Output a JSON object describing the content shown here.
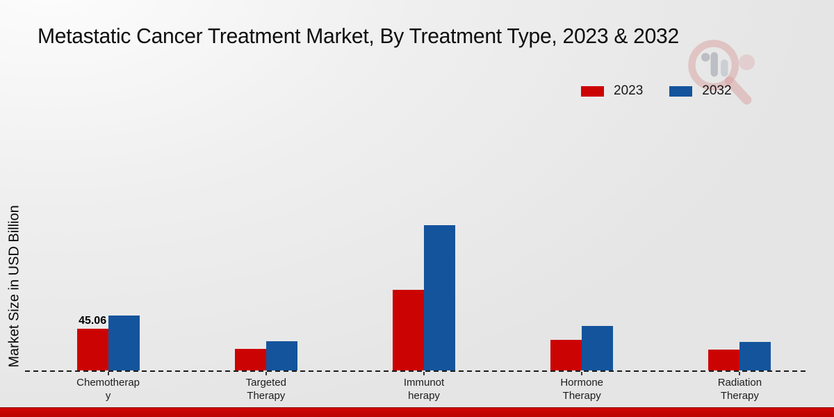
{
  "title": "Metastatic Cancer Treatment Market, By Treatment Type, 2023 & 2032",
  "ylabel": "Market Size in USD Billion",
  "legend": [
    {
      "label": "2023",
      "color": "#cc0303"
    },
    {
      "label": "2032",
      "color": "#14549c"
    }
  ],
  "colors": {
    "series_2023": "#cc0303",
    "series_2032": "#14549c",
    "footer_strip": "#c40404",
    "background": "#ededed"
  },
  "watermark_icon": "magnifier-bar-chart-logo",
  "chart_data": {
    "type": "bar",
    "title": "Metastatic Cancer Treatment Market, By Treatment Type, 2023 & 2032",
    "xlabel": "",
    "ylabel": "Market Size in USD Billion",
    "categories": [
      "Chemotherapy",
      "Targeted Therapy",
      "Immunotherapy",
      "Hormone Therapy",
      "Radiation Therapy"
    ],
    "category_label_lines": [
      [
        "Chemotherap",
        "y"
      ],
      [
        "Targeted",
        "Therapy"
      ],
      [
        "Immunot",
        "herapy"
      ],
      [
        "Hormone",
        "Therapy"
      ],
      [
        "Radiation",
        "Therapy"
      ]
    ],
    "series": [
      {
        "name": "2023",
        "color": "#cc0303",
        "values": [
          45.06,
          23.0,
          87.1,
          33.0,
          22.5
        ],
        "data_labels": [
          "45.06",
          null,
          null,
          null,
          null
        ]
      },
      {
        "name": "2032",
        "color": "#14549c",
        "values": [
          59.3,
          31.5,
          156.7,
          48.1,
          30.5
        ],
        "data_labels": [
          null,
          null,
          null,
          null,
          null
        ]
      }
    ],
    "ylim": [
      0,
      170
    ],
    "grid": false,
    "y_axis_ticks_visible": false,
    "baseline_style": "dashed",
    "legend_position": "top-right"
  }
}
